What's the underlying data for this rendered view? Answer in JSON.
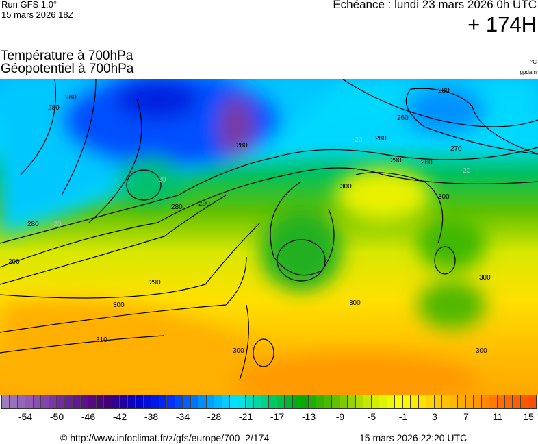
{
  "header": {
    "run": "Run GFS 1.0°",
    "run_date": "15 mars 2026 18Z",
    "echeance": "Echéance : lundi 23 mars 2026 0h UTC",
    "lead_time": "+ 174H"
  },
  "titles": {
    "line1": "Température à 700hPa",
    "line2": "Géopotentiel à 700hPa",
    "unit_temp": "°C",
    "unit_geo": "gpdam"
  },
  "colorbar": {
    "min": -56,
    "max": 15,
    "stops": [
      "#a07cc0",
      "#8a4cb0",
      "#6a1a9a",
      "#4a0070",
      "#0000c8",
      "#0030ff",
      "#0090ff",
      "#00e8ff",
      "#00d070",
      "#00a800",
      "#60c000",
      "#c8e800",
      "#ffff00",
      "#ffd000",
      "#ffa800",
      "#ff7000",
      "#ff5000"
    ],
    "labels": [
      "-54",
      "-50",
      "-46",
      "-42",
      "-38",
      "-34",
      "-28",
      "-21",
      "-17",
      "-13",
      "-9",
      "-5",
      "-1",
      "3",
      "7",
      "11",
      "15"
    ]
  },
  "contours": {
    "geopotential_labels": [
      "280",
      "280",
      "280",
      "290",
      "290",
      "290",
      "300",
      "300",
      "310",
      "300",
      "280",
      "280",
      "260",
      "270",
      "280",
      "290",
      "300",
      "300",
      "300",
      "280",
      "300",
      "260"
    ],
    "temperature_labels": [
      "-20",
      "-20",
      "-20",
      "-20"
    ]
  },
  "footer": {
    "source": "© http://www.infoclimat.fr/z/gfs/europe/700_2/174",
    "generated": "15 mars 2026 22:20 UTC"
  }
}
